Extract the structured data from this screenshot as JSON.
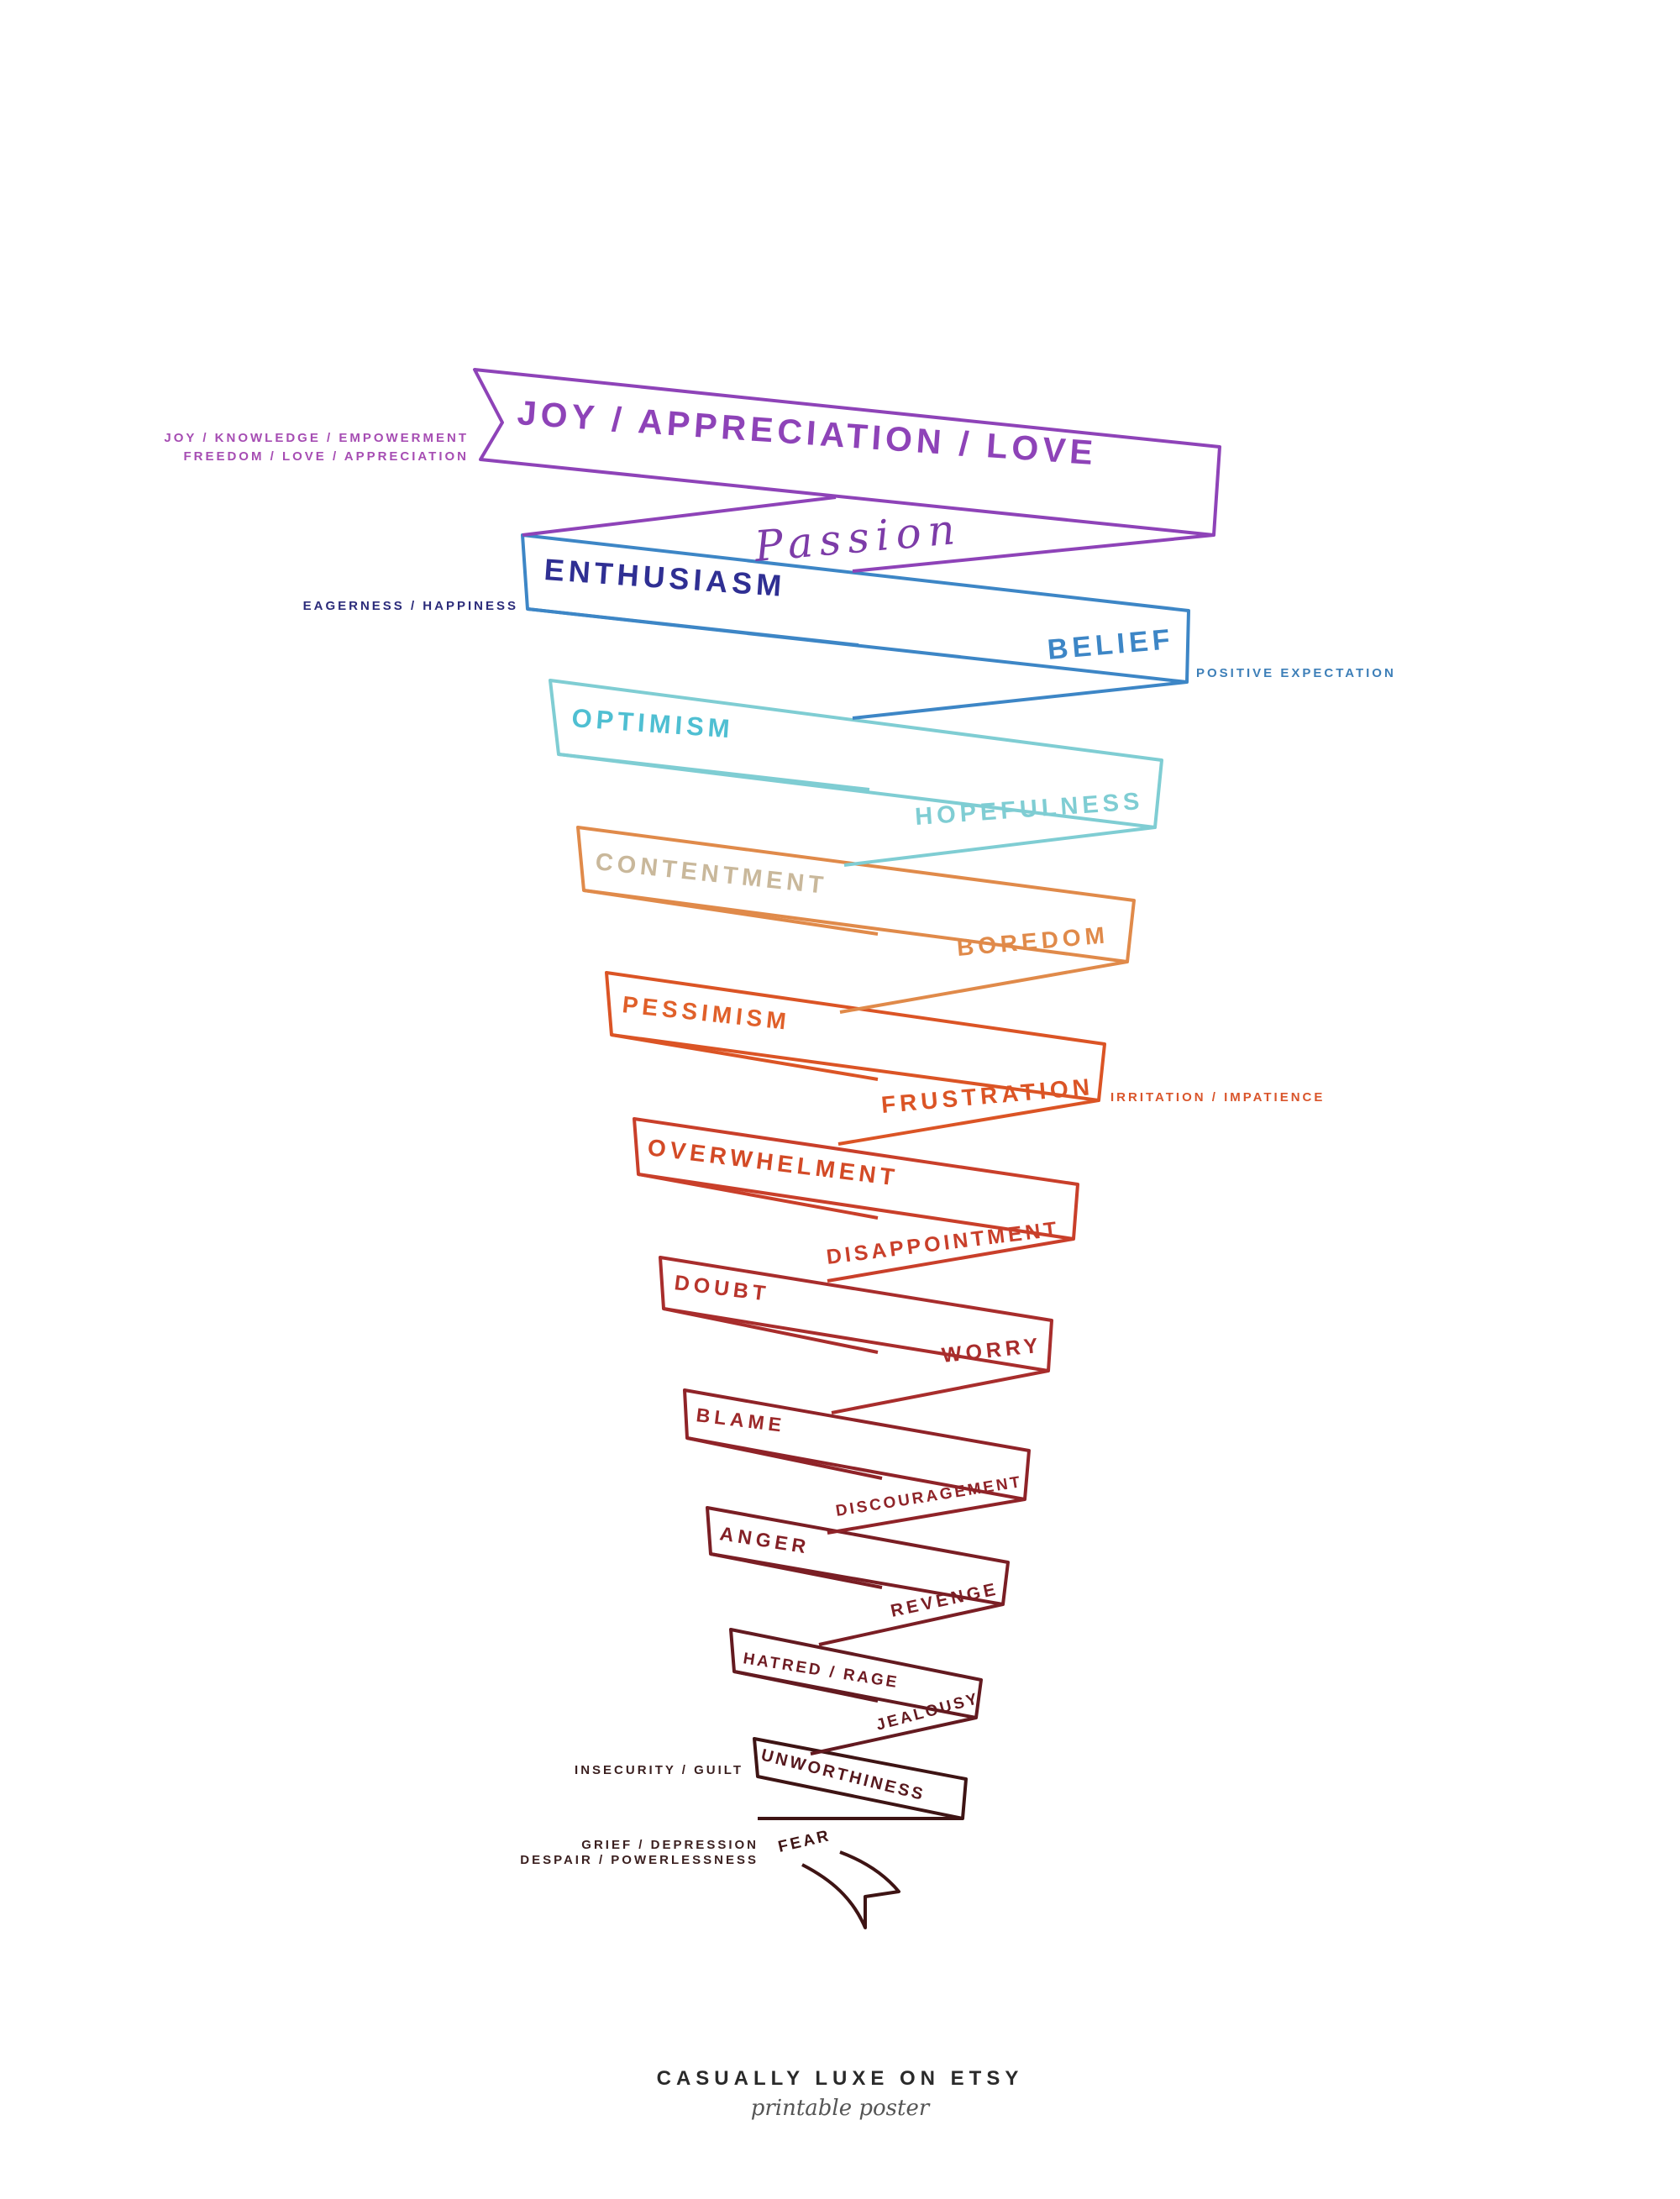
{
  "levels": [
    {
      "label": "JOY / APPRECIATION / LOVE",
      "color": "#8e43b8"
    },
    {
      "label": "ENTHUSIASM",
      "color": "#2f2f93"
    },
    {
      "label": "BELIEF",
      "color": "#3d86c6"
    },
    {
      "label": "OPTIMISM",
      "color": "#4fbfd2"
    },
    {
      "label": "HOPEFULNESS",
      "color": "#7fcdd3"
    },
    {
      "label": "CONTENTMENT",
      "color": "#c9b89b"
    },
    {
      "label": "BOREDOM",
      "color": "#e08a4a"
    },
    {
      "label": "PESSIMISM",
      "color": "#e0602a"
    },
    {
      "label": "FRUSTRATION",
      "color": "#db5425"
    },
    {
      "label": "OVERWHELMENT",
      "color": "#d34a26"
    },
    {
      "label": "DISAPPOINTMENT",
      "color": "#c93f2a"
    },
    {
      "label": "DOUBT",
      "color": "#b8352c"
    },
    {
      "label": "WORRY",
      "color": "#a82d2c"
    },
    {
      "label": "BLAME",
      "color": "#9c2829"
    },
    {
      "label": "DISCOURAGEMENT",
      "color": "#8f2328"
    },
    {
      "label": "ANGER",
      "color": "#832026"
    },
    {
      "label": "REVENGE",
      "color": "#7a1e24"
    },
    {
      "label": "HATRED / RAGE",
      "color": "#6e1b22"
    },
    {
      "label": "JEALOUSY",
      "color": "#631a20"
    },
    {
      "label": "UNWORTHINESS",
      "color": "#56181d"
    },
    {
      "label": "FEAR",
      "color": "#3e1414"
    }
  ],
  "passion": "Passion",
  "side_notes": {
    "joy_line1": "JOY / KNOWLEDGE / EMPOWERMENT",
    "joy_line2": "FREEDOM / LOVE / APPRECIATION",
    "enthusiasm": "EAGERNESS / HAPPINESS",
    "belief": "POSITIVE EXPECTATION",
    "frustration": "IRRITATION / IMPATIENCE",
    "unworthiness": "INSECURITY / GUILT",
    "fear_line1": "GRIEF / DEPRESSION",
    "fear_line2": "DESPAIR / POWERLESSNESS"
  },
  "footer": {
    "brand": "CASUALLY LUXE ON ETSY",
    "tagline": "printable poster"
  },
  "colors": {
    "joy_note": "#a64db3",
    "navy_note": "#2b2b7a",
    "blue_note": "#3d7fb8",
    "orange_note": "#d9552b",
    "dark_note": "#3a1f1f",
    "footer": "#2a2a2a"
  }
}
